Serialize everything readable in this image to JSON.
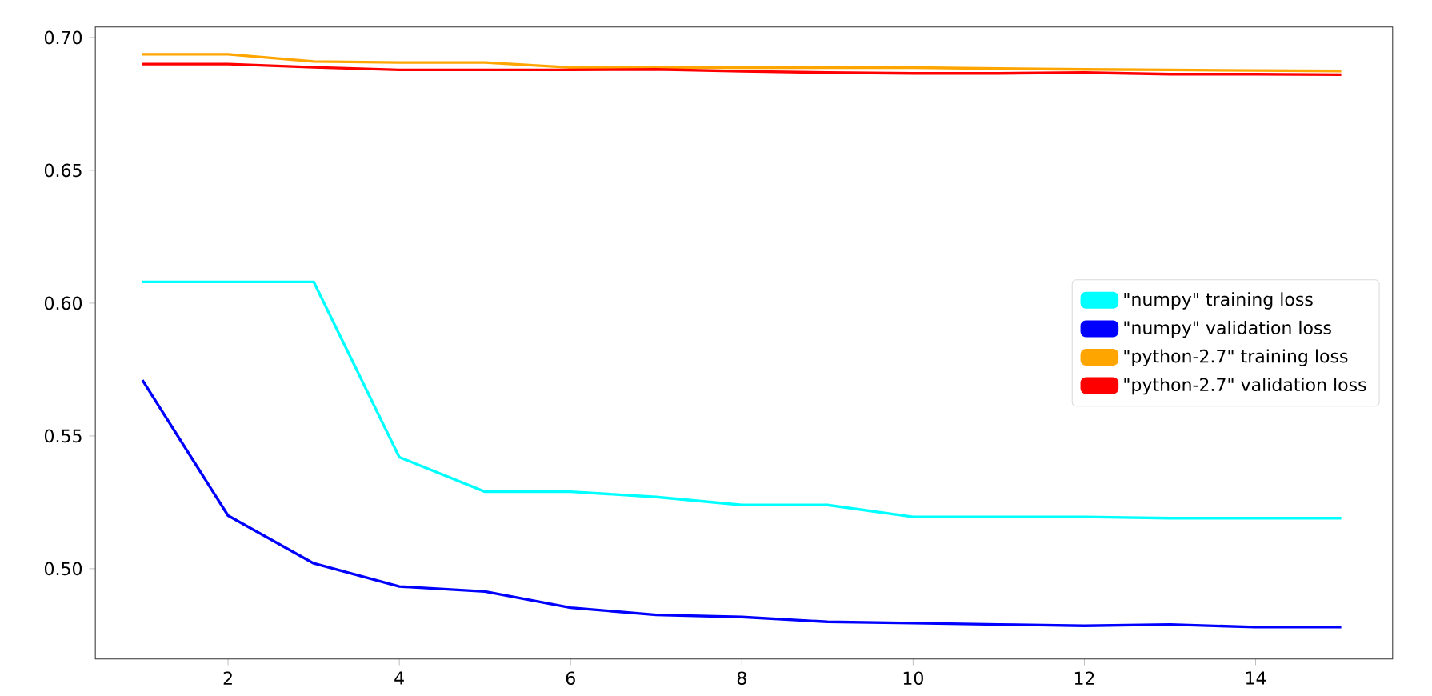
{
  "chart_data": {
    "type": "line",
    "x": [
      1,
      2,
      3,
      4,
      5,
      6,
      7,
      8,
      9,
      10,
      11,
      12,
      13,
      14,
      15
    ],
    "series": [
      {
        "name": "\"numpy\" training loss",
        "color": "#00ffff",
        "values": [
          0.608,
          0.608,
          0.608,
          0.542,
          0.529,
          0.529,
          0.527,
          0.524,
          0.524,
          0.5195,
          0.5195,
          0.5195,
          0.519,
          0.519,
          0.519
        ]
      },
      {
        "name": "\"numpy\" validation loss",
        "color": "#0000ff",
        "values": [
          0.571,
          0.52,
          0.502,
          0.4933,
          0.4914,
          0.4853,
          0.4826,
          0.4818,
          0.48,
          0.4795,
          0.479,
          0.4785,
          0.479,
          0.478,
          0.478
        ]
      },
      {
        "name": "\"python-2.7\" training loss",
        "color": "#ffa500",
        "values": [
          0.6937,
          0.6937,
          0.691,
          0.6906,
          0.6906,
          0.6887,
          0.6887,
          0.6887,
          0.6887,
          0.6887,
          0.6883,
          0.688,
          0.6878,
          0.6876,
          0.6874
        ]
      },
      {
        "name": "\"python-2.7\" validation loss",
        "color": "#ff0000",
        "values": [
          0.69,
          0.69,
          0.6888,
          0.6878,
          0.6878,
          0.6878,
          0.688,
          0.6873,
          0.6868,
          0.6865,
          0.6865,
          0.6868,
          0.6862,
          0.6862,
          0.686
        ]
      }
    ],
    "xlim": [
      0.45,
      15.6
    ],
    "ylim": [
      0.466,
      0.704
    ],
    "xticks": [
      2,
      4,
      6,
      8,
      10,
      12,
      14
    ],
    "yticks": [
      {
        "value": 0.5,
        "label": "0.50"
      },
      {
        "value": 0.55,
        "label": "0.55"
      },
      {
        "value": 0.6,
        "label": "0.60"
      },
      {
        "value": 0.65,
        "label": "0.65"
      },
      {
        "value": 0.7,
        "label": "0.70"
      }
    ],
    "legend": "right",
    "grid": false,
    "marker": "none",
    "line_style": "solid"
  }
}
